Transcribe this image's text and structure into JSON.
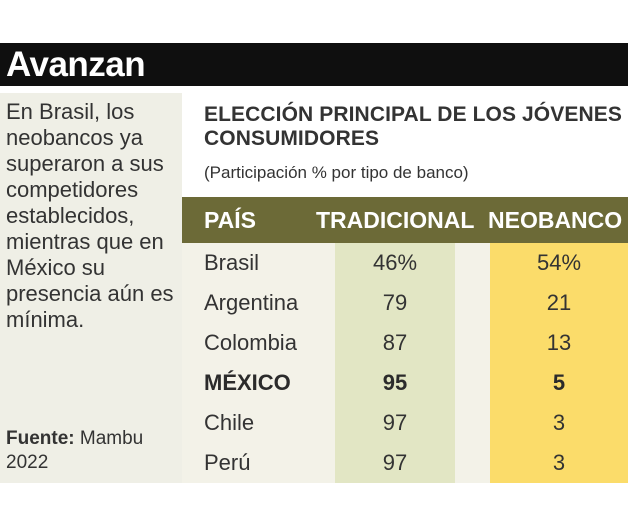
{
  "banner": {
    "title": "Avanzan"
  },
  "sidebar": {
    "intro": "En Brasil, los neobancos ya superaron a sus competidores establecidos, mientras que en México su presencia aún es mínima.",
    "source_label": "Fuente:",
    "source_value": "Mambu 2022"
  },
  "chart": {
    "title": "ELECCIÓN PRINCIPAL DE LOS JÓVENES CONSUMIDORES",
    "subtitle": "(Participación % por tipo de banco)"
  },
  "table": {
    "headers": {
      "country": "PAÍS",
      "traditional": "TRADICIONAL",
      "neobank": "NEOBANCO"
    }
  },
  "chart_data": {
    "type": "table",
    "title": "ELECCIÓN PRINCIPAL DE LOS JÓVENES CONSUMIDORES",
    "subtitle": "(Participación % por tipo de banco)",
    "columns": [
      "PAÍS",
      "TRADICIONAL",
      "NEOBANCO"
    ],
    "rows": [
      {
        "country": "Brasil",
        "traditional": "46%",
        "neobank": "54%",
        "highlight": false
      },
      {
        "country": "Argentina",
        "traditional": "79",
        "neobank": "21",
        "highlight": false
      },
      {
        "country": "Colombia",
        "traditional": "87",
        "neobank": "13",
        "highlight": false
      },
      {
        "country": "MÉXICO",
        "traditional": "95",
        "neobank": "5",
        "highlight": true
      },
      {
        "country": "Chile",
        "traditional": "97",
        "neobank": "3",
        "highlight": false
      },
      {
        "country": "Perú",
        "traditional": "97",
        "neobank": "3",
        "highlight": false
      }
    ]
  }
}
